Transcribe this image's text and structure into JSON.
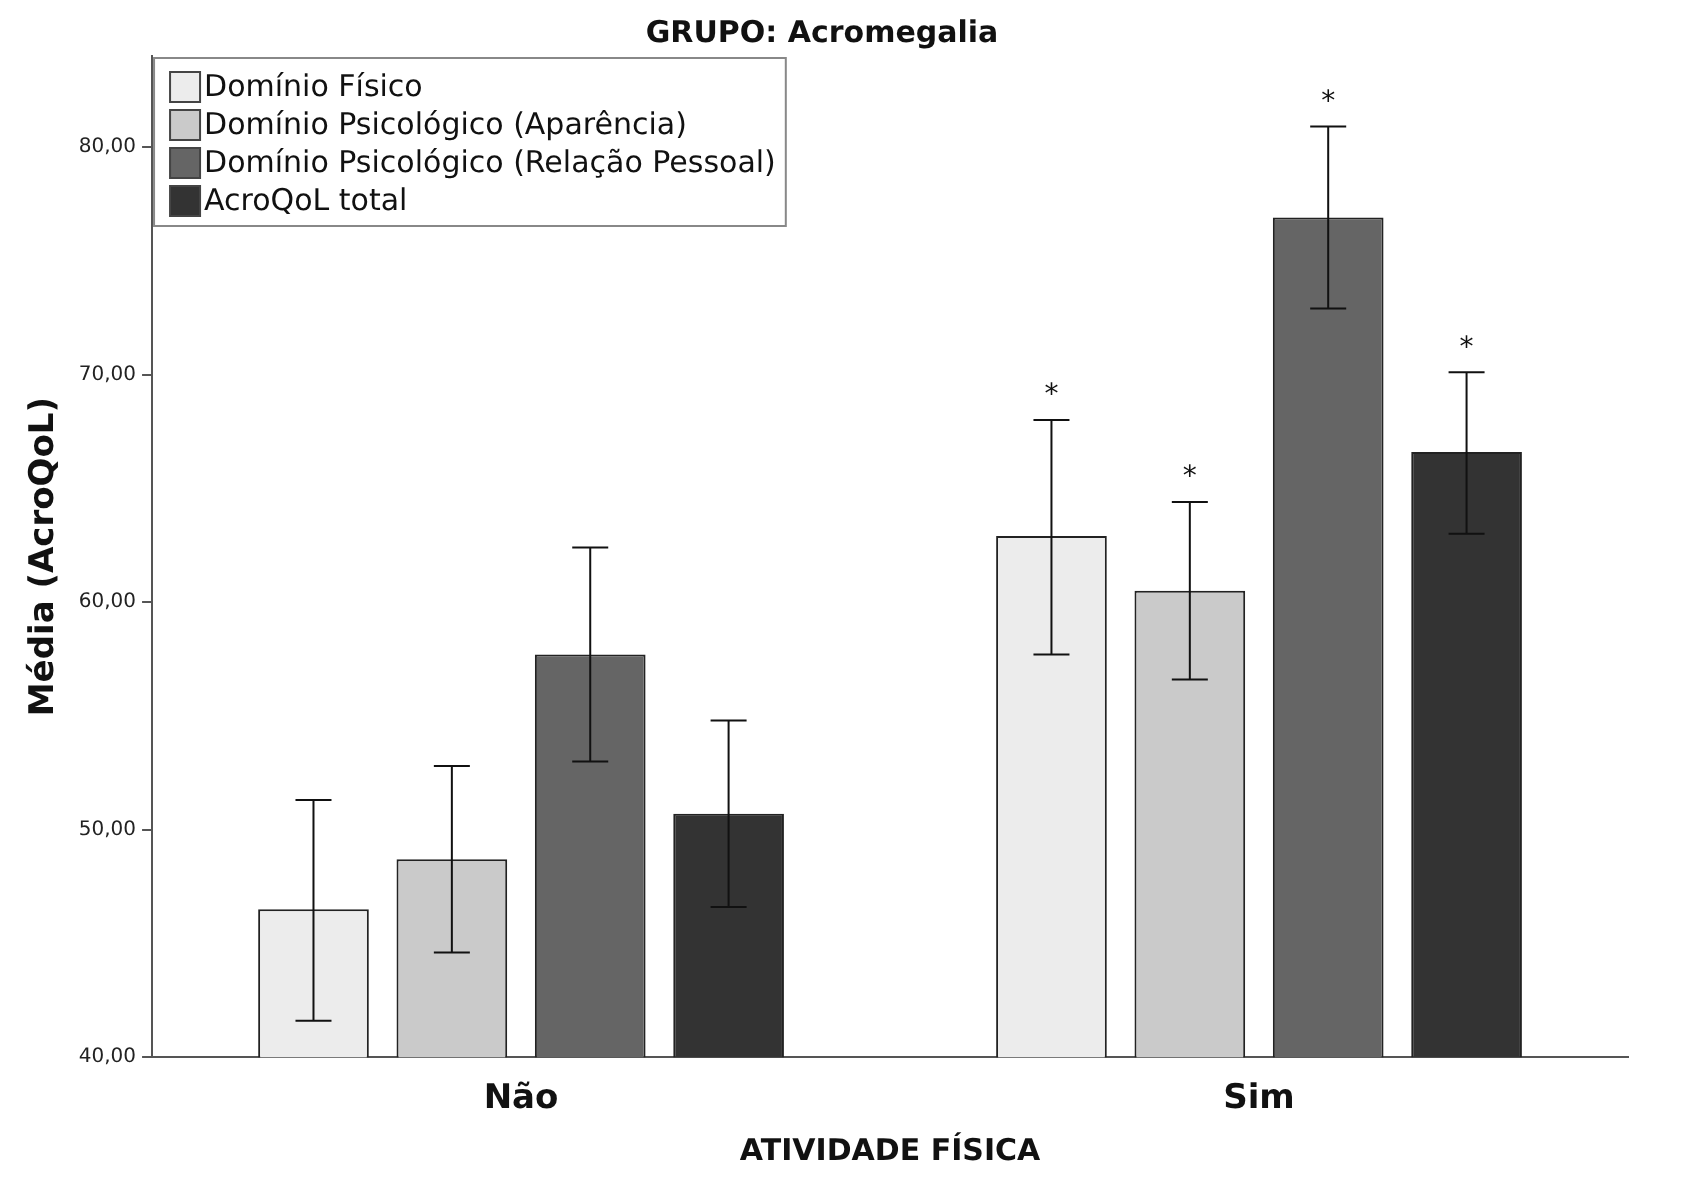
{
  "chart_data": {
    "type": "bar",
    "title": "GRUPO: Acromegalia",
    "xlabel": "ATIVIDADE FÍSICA",
    "ylabel": "Média (AcroQoL)",
    "categories": [
      "Não",
      "Sim"
    ],
    "series": [
      {
        "name": "Domínio Físico",
        "color": "#ececec",
        "values": [
          46.5,
          62.9
        ],
        "errors": [
          [
            41.6,
            51.3
          ],
          [
            57.7,
            68.0
          ]
        ]
      },
      {
        "name": "Domínio Psicológico (Aparência)",
        "color": "#cacaca",
        "values": [
          48.7,
          60.5
        ],
        "errors": [
          [
            44.6,
            52.8
          ],
          [
            56.6,
            64.4
          ]
        ]
      },
      {
        "name": "Domínio Psicológico (Relação Pessoal)",
        "color": "#656565",
        "values": [
          57.7,
          76.9
        ],
        "errors": [
          [
            53.0,
            62.4
          ],
          [
            72.9,
            80.9
          ]
        ]
      },
      {
        "name": "AcroQoL total",
        "color": "#333333",
        "values": [
          50.7,
          66.6
        ],
        "errors": [
          [
            46.6,
            54.8
          ],
          [
            63.0,
            70.1
          ]
        ]
      }
    ],
    "ylim": [
      40,
      84
    ],
    "yticks": [
      {
        "value": 40,
        "label": "40,00"
      },
      {
        "value": 50,
        "label": "50,00"
      },
      {
        "value": 60,
        "label": "60,00"
      },
      {
        "value": 70,
        "label": "70,00"
      },
      {
        "value": 80,
        "label": "80,00"
      }
    ],
    "annotations": [
      "*",
      "*",
      "*",
      "*"
    ],
    "grid": false,
    "legend": "top left"
  }
}
